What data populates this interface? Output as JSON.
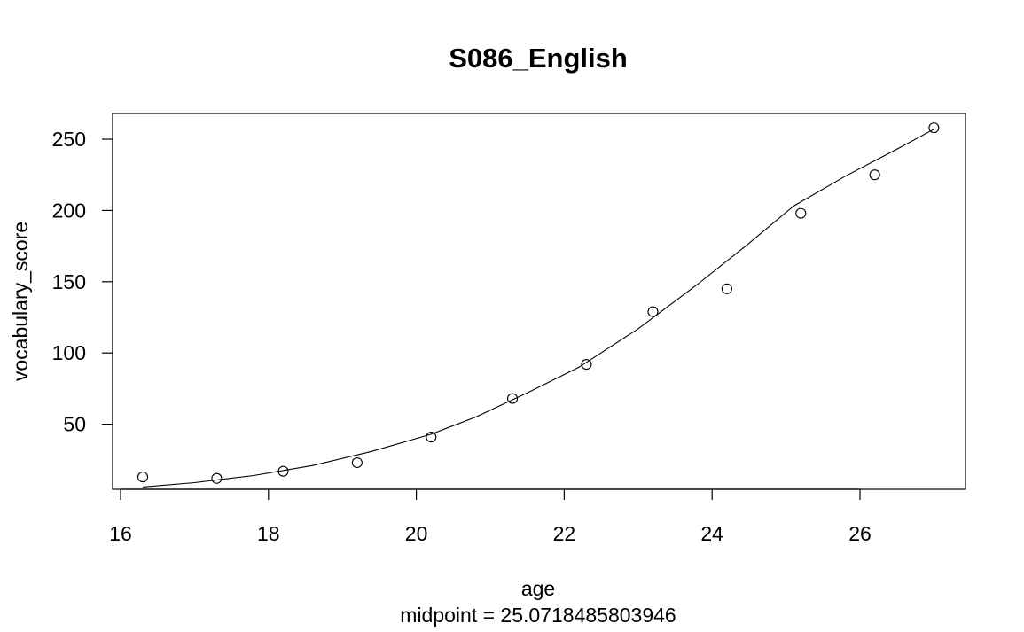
{
  "chart_data": {
    "type": "scatter",
    "title": "S086_English",
    "xlabel": "age",
    "ylabel": "vocabulary_score",
    "subtitle": "midpoint = 25.0718485803946",
    "xlim": [
      16,
      27.5
    ],
    "ylim": [
      0,
      268
    ],
    "x_ticks": [
      16,
      18,
      20,
      22,
      24,
      26
    ],
    "y_ticks": [
      50,
      100,
      150,
      200,
      250
    ],
    "grid": false,
    "points": {
      "x": [
        16.3,
        17.3,
        18.2,
        19.2,
        20.2,
        21.3,
        22.3,
        23.2,
        24.2,
        25.2,
        26.2,
        27.0
      ],
      "y": [
        13,
        12,
        17,
        23,
        41,
        68,
        92,
        129,
        145,
        198,
        225,
        258
      ]
    },
    "fitted_curve": {
      "x": [
        16.3,
        17.0,
        17.8,
        18.6,
        19.4,
        20.2,
        20.8,
        21.5,
        22.2,
        23.0,
        23.8,
        24.5,
        25.1,
        25.8,
        26.5,
        27.0
      ],
      "y": [
        6,
        9,
        14,
        21,
        31,
        43,
        55,
        72,
        90,
        117,
        148,
        177,
        203,
        224,
        243,
        257
      ]
    }
  }
}
